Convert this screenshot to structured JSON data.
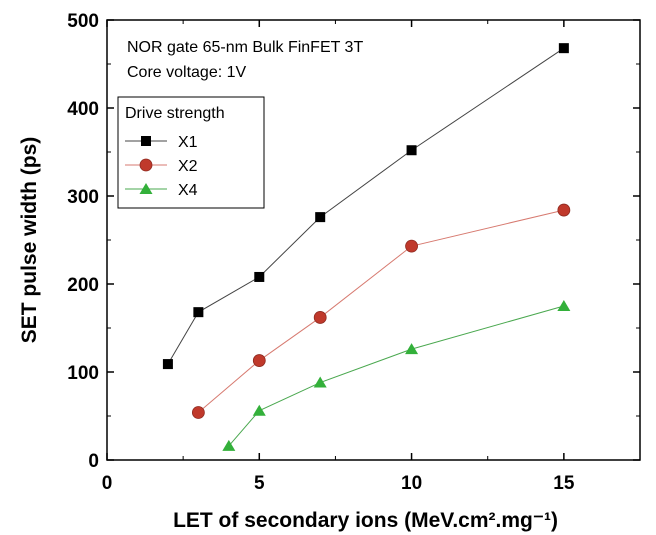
{
  "chart_data": {
    "type": "line",
    "title": "",
    "annotations": [
      "NOR gate 65-nm Bulk FinFET 3T",
      "Core voltage: 1V"
    ],
    "xlabel": "LET of secondary ions (MeV.cm².mg⁻¹)",
    "ylabel": "SET pulse width (ps)",
    "xlim": [
      0,
      17.5
    ],
    "ylim": [
      0,
      500
    ],
    "xticks": [
      0,
      5,
      10,
      15
    ],
    "yticks": [
      0,
      100,
      200,
      300,
      400,
      500
    ],
    "grid": false,
    "legend": {
      "title": "Drive strength",
      "placement": "top-left"
    },
    "series": [
      {
        "name": "X1",
        "color": "#000000",
        "line_color": "#444444",
        "marker": "square",
        "x": [
          2,
          3,
          5,
          7,
          10,
          15
        ],
        "y": [
          109,
          168,
          208,
          276,
          352,
          468
        ]
      },
      {
        "name": "X2",
        "color": "#c0392b",
        "line_color": "#d77a70",
        "marker": "circle",
        "x": [
          3,
          5,
          7,
          10,
          15
        ],
        "y": [
          54,
          113,
          162,
          243,
          284
        ]
      },
      {
        "name": "X4",
        "color": "#33b03a",
        "line_color": "#4aa84f",
        "marker": "triangle",
        "x": [
          4,
          5,
          7,
          10,
          15
        ],
        "y": [
          16,
          56,
          88,
          126,
          175
        ]
      }
    ]
  }
}
